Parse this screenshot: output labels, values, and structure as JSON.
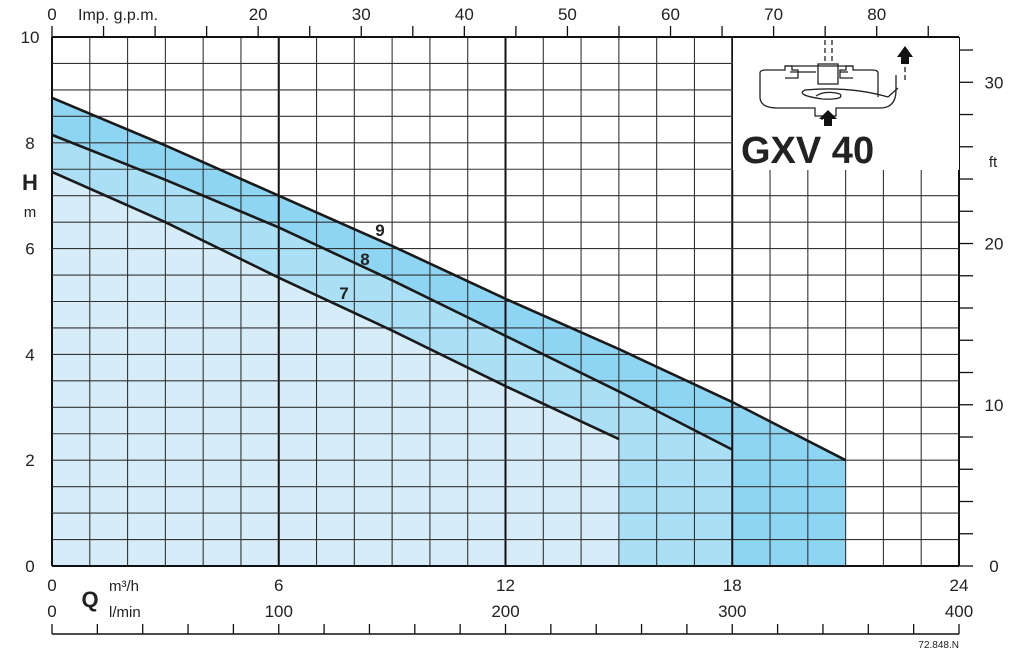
{
  "chart_data": {
    "type": "line",
    "title": "GXV 40",
    "xlabel": "Q",
    "x_unit": "m³/h",
    "x_secondary_unit": "l/min",
    "x_top_unit": "Imp. g.p.m.",
    "ylabel": "H",
    "y_unit": "m",
    "y_right_unit": "ft",
    "xlim": [
      0,
      24
    ],
    "ylim": [
      0,
      10
    ],
    "x_ticks": [
      "0",
      "6",
      "12",
      "18",
      "24"
    ],
    "x_lmin_ticks": [
      "0",
      "100",
      "200",
      "300",
      "400"
    ],
    "x_top_ticks": [
      "0",
      "20",
      "30",
      "40",
      "50",
      "60",
      "70",
      "80"
    ],
    "y_ticks": [
      "0",
      "2",
      "4",
      "6",
      "8",
      "10"
    ],
    "y_right_ticks": [
      "0",
      "10",
      "20",
      "30"
    ],
    "grid": true,
    "series": [
      {
        "name": "9",
        "color": "#8ed5f3",
        "x": [
          0,
          3,
          6,
          9,
          12,
          15,
          18,
          21
        ],
        "y": [
          8.85,
          7.95,
          7.0,
          6.05,
          5.05,
          4.1,
          3.1,
          2.0
        ]
      },
      {
        "name": "8",
        "color": "#aadff5",
        "x": [
          0,
          3,
          6,
          9,
          12,
          15,
          18
        ],
        "y": [
          8.15,
          7.3,
          6.4,
          5.4,
          4.35,
          3.3,
          2.2
        ]
      },
      {
        "name": "7",
        "color": "#d6edf9",
        "x": [
          0,
          3,
          6,
          9,
          12,
          15
        ],
        "y": [
          7.45,
          6.5,
          5.45,
          4.45,
          3.4,
          2.4
        ]
      }
    ],
    "footnote": "72.848.N"
  }
}
